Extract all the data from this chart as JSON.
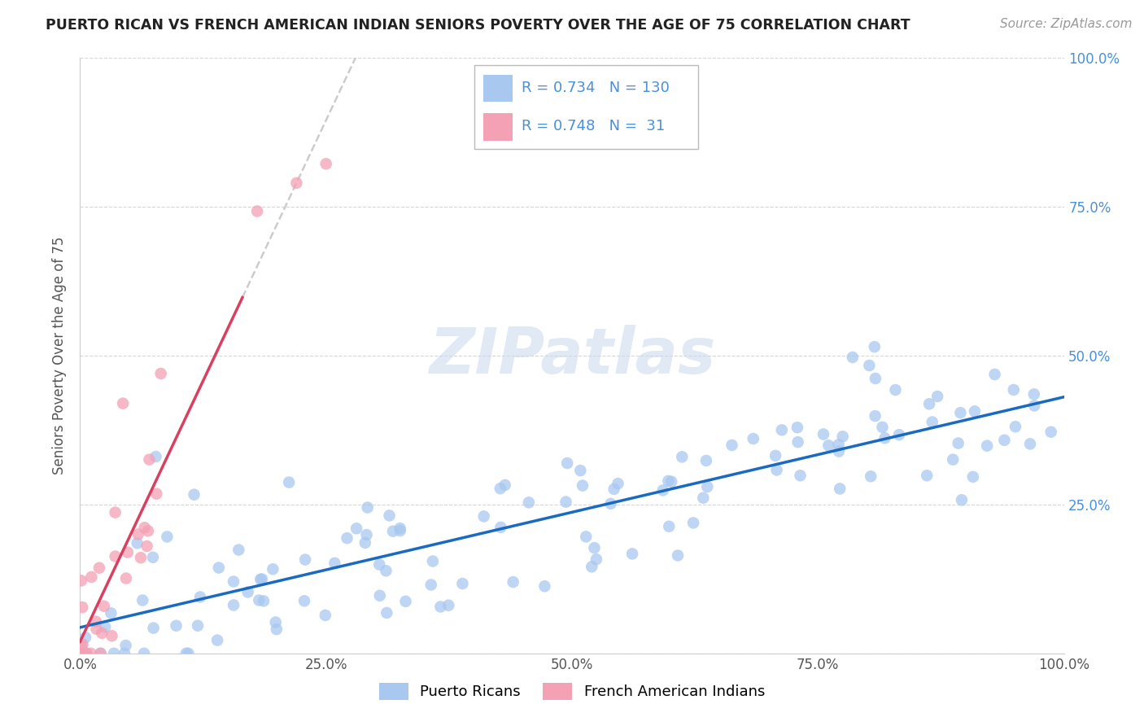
{
  "title": "PUERTO RICAN VS FRENCH AMERICAN INDIAN SENIORS POVERTY OVER THE AGE OF 75 CORRELATION CHART",
  "source": "Source: ZipAtlas.com",
  "ylabel": "Seniors Poverty Over the Age of 75",
  "xlabel": "",
  "watermark": "ZIPatlas",
  "blue_R": 0.734,
  "blue_N": 130,
  "pink_R": 0.748,
  "pink_N": 31,
  "blue_color": "#a8c8f0",
  "pink_color": "#f4a0b5",
  "blue_line_color": "#1a6abf",
  "pink_line_color": "#d94060",
  "legend_label_blue": "Puerto Ricans",
  "legend_label_pink": "French American Indians",
  "blue_scatter_seed": 42,
  "pink_scatter_seed": 7,
  "right_tick_color": "#4a90d9"
}
